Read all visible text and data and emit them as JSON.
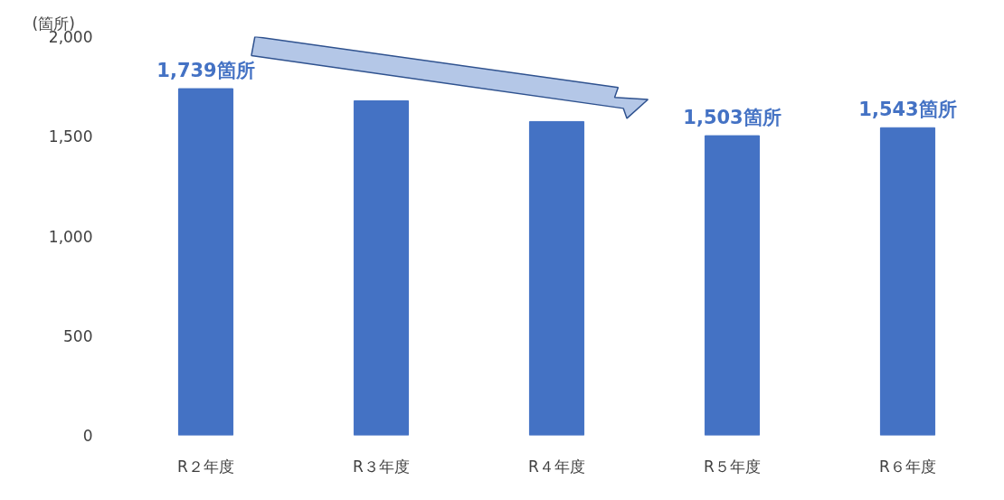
{
  "chart_data": {
    "type": "bar",
    "ylabel": "(箇所)",
    "categories": [
      "R２年度",
      "R３年度",
      "R４年度",
      "R５年度",
      "R６年度"
    ],
    "values": [
      1739,
      1678,
      1574,
      1503,
      1543
    ],
    "color": "#4472c4",
    "value_labels": [
      "1,739箇所",
      null,
      null,
      "1,503箇所",
      "1,543箇所"
    ],
    "ylim": [
      0,
      2000
    ],
    "yticks": [
      {
        "value": 0,
        "label": "0"
      },
      {
        "value": 500,
        "label": "500"
      },
      {
        "value": 1000,
        "label": "1,000"
      },
      {
        "value": 1500,
        "label": "1,500"
      },
      {
        "value": 2000,
        "label": "2,000"
      }
    ],
    "grid": false
  }
}
